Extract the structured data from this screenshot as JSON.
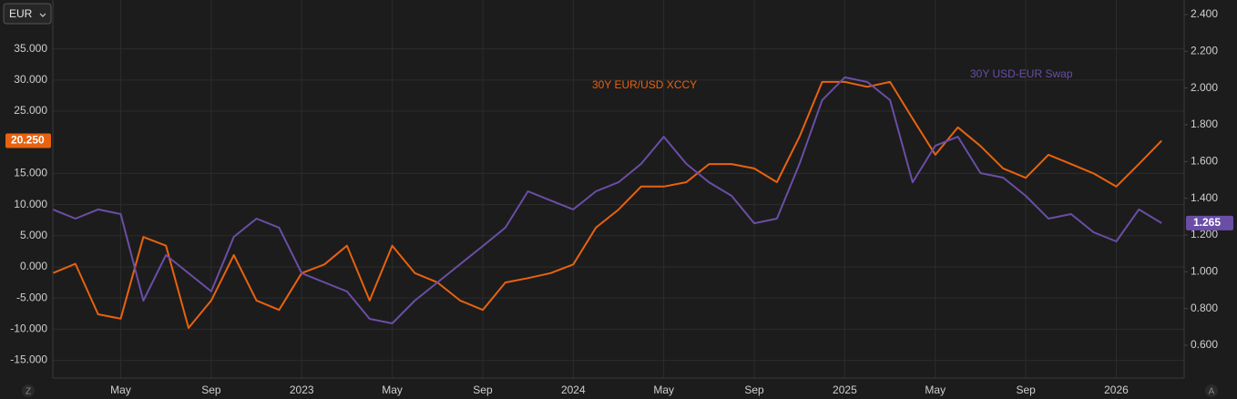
{
  "ui": {
    "currency": "EUR",
    "left_button": "Z",
    "right_button": "A"
  },
  "chart_data": {
    "type": "line",
    "annotations": [
      "30Y EUR/USD XCCY",
      "30Y USD-EUR Swap"
    ],
    "x": [
      "2022-02",
      "2022-03",
      "2022-04",
      "2022-05",
      "2022-06",
      "2022-07",
      "2022-08",
      "2022-09",
      "2022-10",
      "2022-11",
      "2022-12",
      "2023-01",
      "2023-02",
      "2023-03",
      "2023-04",
      "2023-05",
      "2023-06",
      "2023-07",
      "2023-08",
      "2023-09",
      "2023-10",
      "2023-11",
      "2023-12",
      "2024-01",
      "2024-02",
      "2024-03",
      "2024-04",
      "2024-05",
      "2024-06",
      "2024-07",
      "2024-08",
      "2024-09",
      "2024-10",
      "2024-11",
      "2024-12",
      "2025-01",
      "2025-02",
      "2025-03",
      "2025-04",
      "2025-05",
      "2025-06",
      "2025-07",
      "2025-08",
      "2025-09",
      "2025-10",
      "2025-11",
      "2025-12",
      "2026-01",
      "2026-02",
      "2026-03"
    ],
    "xlim": [
      "2022-02",
      "2026-04"
    ],
    "xticks": [
      {
        "value": "2022-05",
        "label": "May"
      },
      {
        "value": "2022-09",
        "label": "Sep"
      },
      {
        "value": "2023-01",
        "label": "2023"
      },
      {
        "value": "2023-05",
        "label": "May"
      },
      {
        "value": "2023-09",
        "label": "Sep"
      },
      {
        "value": "2024-01",
        "label": "2024"
      },
      {
        "value": "2024-05",
        "label": "May"
      },
      {
        "value": "2024-09",
        "label": "Sep"
      },
      {
        "value": "2025-01",
        "label": "2025"
      },
      {
        "value": "2025-05",
        "label": "May"
      },
      {
        "value": "2025-09",
        "label": "Sep"
      },
      {
        "value": "2026-01",
        "label": "2026"
      }
    ],
    "ylim": [
      -17.84,
      42.84
    ],
    "yticks": [
      {
        "value": 35,
        "label": "35.000"
      },
      {
        "value": 30,
        "label": "30.000"
      },
      {
        "value": 25,
        "label": "25.000"
      },
      {
        "value": 15,
        "label": "15.000"
      },
      {
        "value": 10,
        "label": "10.000"
      },
      {
        "value": 5,
        "label": "5.000"
      },
      {
        "value": 0,
        "label": "0.000"
      },
      {
        "value": -5,
        "label": "-5.000"
      },
      {
        "value": -10,
        "label": "-10.000"
      },
      {
        "value": -15,
        "label": "-15.000"
      }
    ],
    "y2lim": [
      0.4215,
      2.479
    ],
    "y2ticks": [
      {
        "value": 2.4,
        "label": "2.400"
      },
      {
        "value": 2.2,
        "label": "2.200"
      },
      {
        "value": 2.0,
        "label": "2.000"
      },
      {
        "value": 1.8,
        "label": "1.800"
      },
      {
        "value": 1.6,
        "label": "1.600"
      },
      {
        "value": 1.4,
        "label": "1.400"
      },
      {
        "value": 1.2,
        "label": "1.200"
      },
      {
        "value": 1.0,
        "label": "1.000"
      },
      {
        "value": 0.8,
        "label": "0.800"
      },
      {
        "value": 0.6,
        "label": "0.600"
      }
    ],
    "grid": true,
    "series": [
      {
        "name": "30Y EUR/USD XCCY",
        "color": "#e8620f",
        "axis": "y",
        "last_label": "20.250",
        "values": [
          -1,
          0.5,
          -7.6,
          -8.3,
          4.8,
          3.4,
          -9.8,
          -5.4,
          1.9,
          -5.4,
          -6.9,
          -1,
          0.4,
          3.4,
          -5.4,
          3.4,
          -1,
          -2.5,
          -5.4,
          -6.9,
          -2.5,
          -1.8,
          -1,
          0.4,
          6.3,
          9.2,
          12.9,
          12.9,
          13.6,
          16.5,
          16.5,
          15.8,
          13.6,
          20.9,
          29.7,
          29.7,
          28.9,
          29.7,
          23.8,
          18,
          22.4,
          19.4,
          15.8,
          14.3,
          18,
          16.5,
          15,
          12.9,
          16.5,
          20.25
        ]
      },
      {
        "name": "30Y USD-EUR Swap",
        "color": "#6a4ea6",
        "axis": "y2",
        "last_label": "1.265",
        "values": [
          1.339,
          1.289,
          1.339,
          1.314,
          0.843,
          1.091,
          0.992,
          0.893,
          1.19,
          1.289,
          1.24,
          0.992,
          0.942,
          0.893,
          0.744,
          0.719,
          0.843,
          0.942,
          1.041,
          1.14,
          1.24,
          1.438,
          1.388,
          1.339,
          1.438,
          1.487,
          1.587,
          1.735,
          1.587,
          1.487,
          1.413,
          1.264,
          1.289,
          1.587,
          1.934,
          2.058,
          2.033,
          1.934,
          1.487,
          1.686,
          1.735,
          1.537,
          1.512,
          1.413,
          1.289,
          1.314,
          1.215,
          1.165,
          1.339,
          1.265
        ]
      }
    ]
  }
}
